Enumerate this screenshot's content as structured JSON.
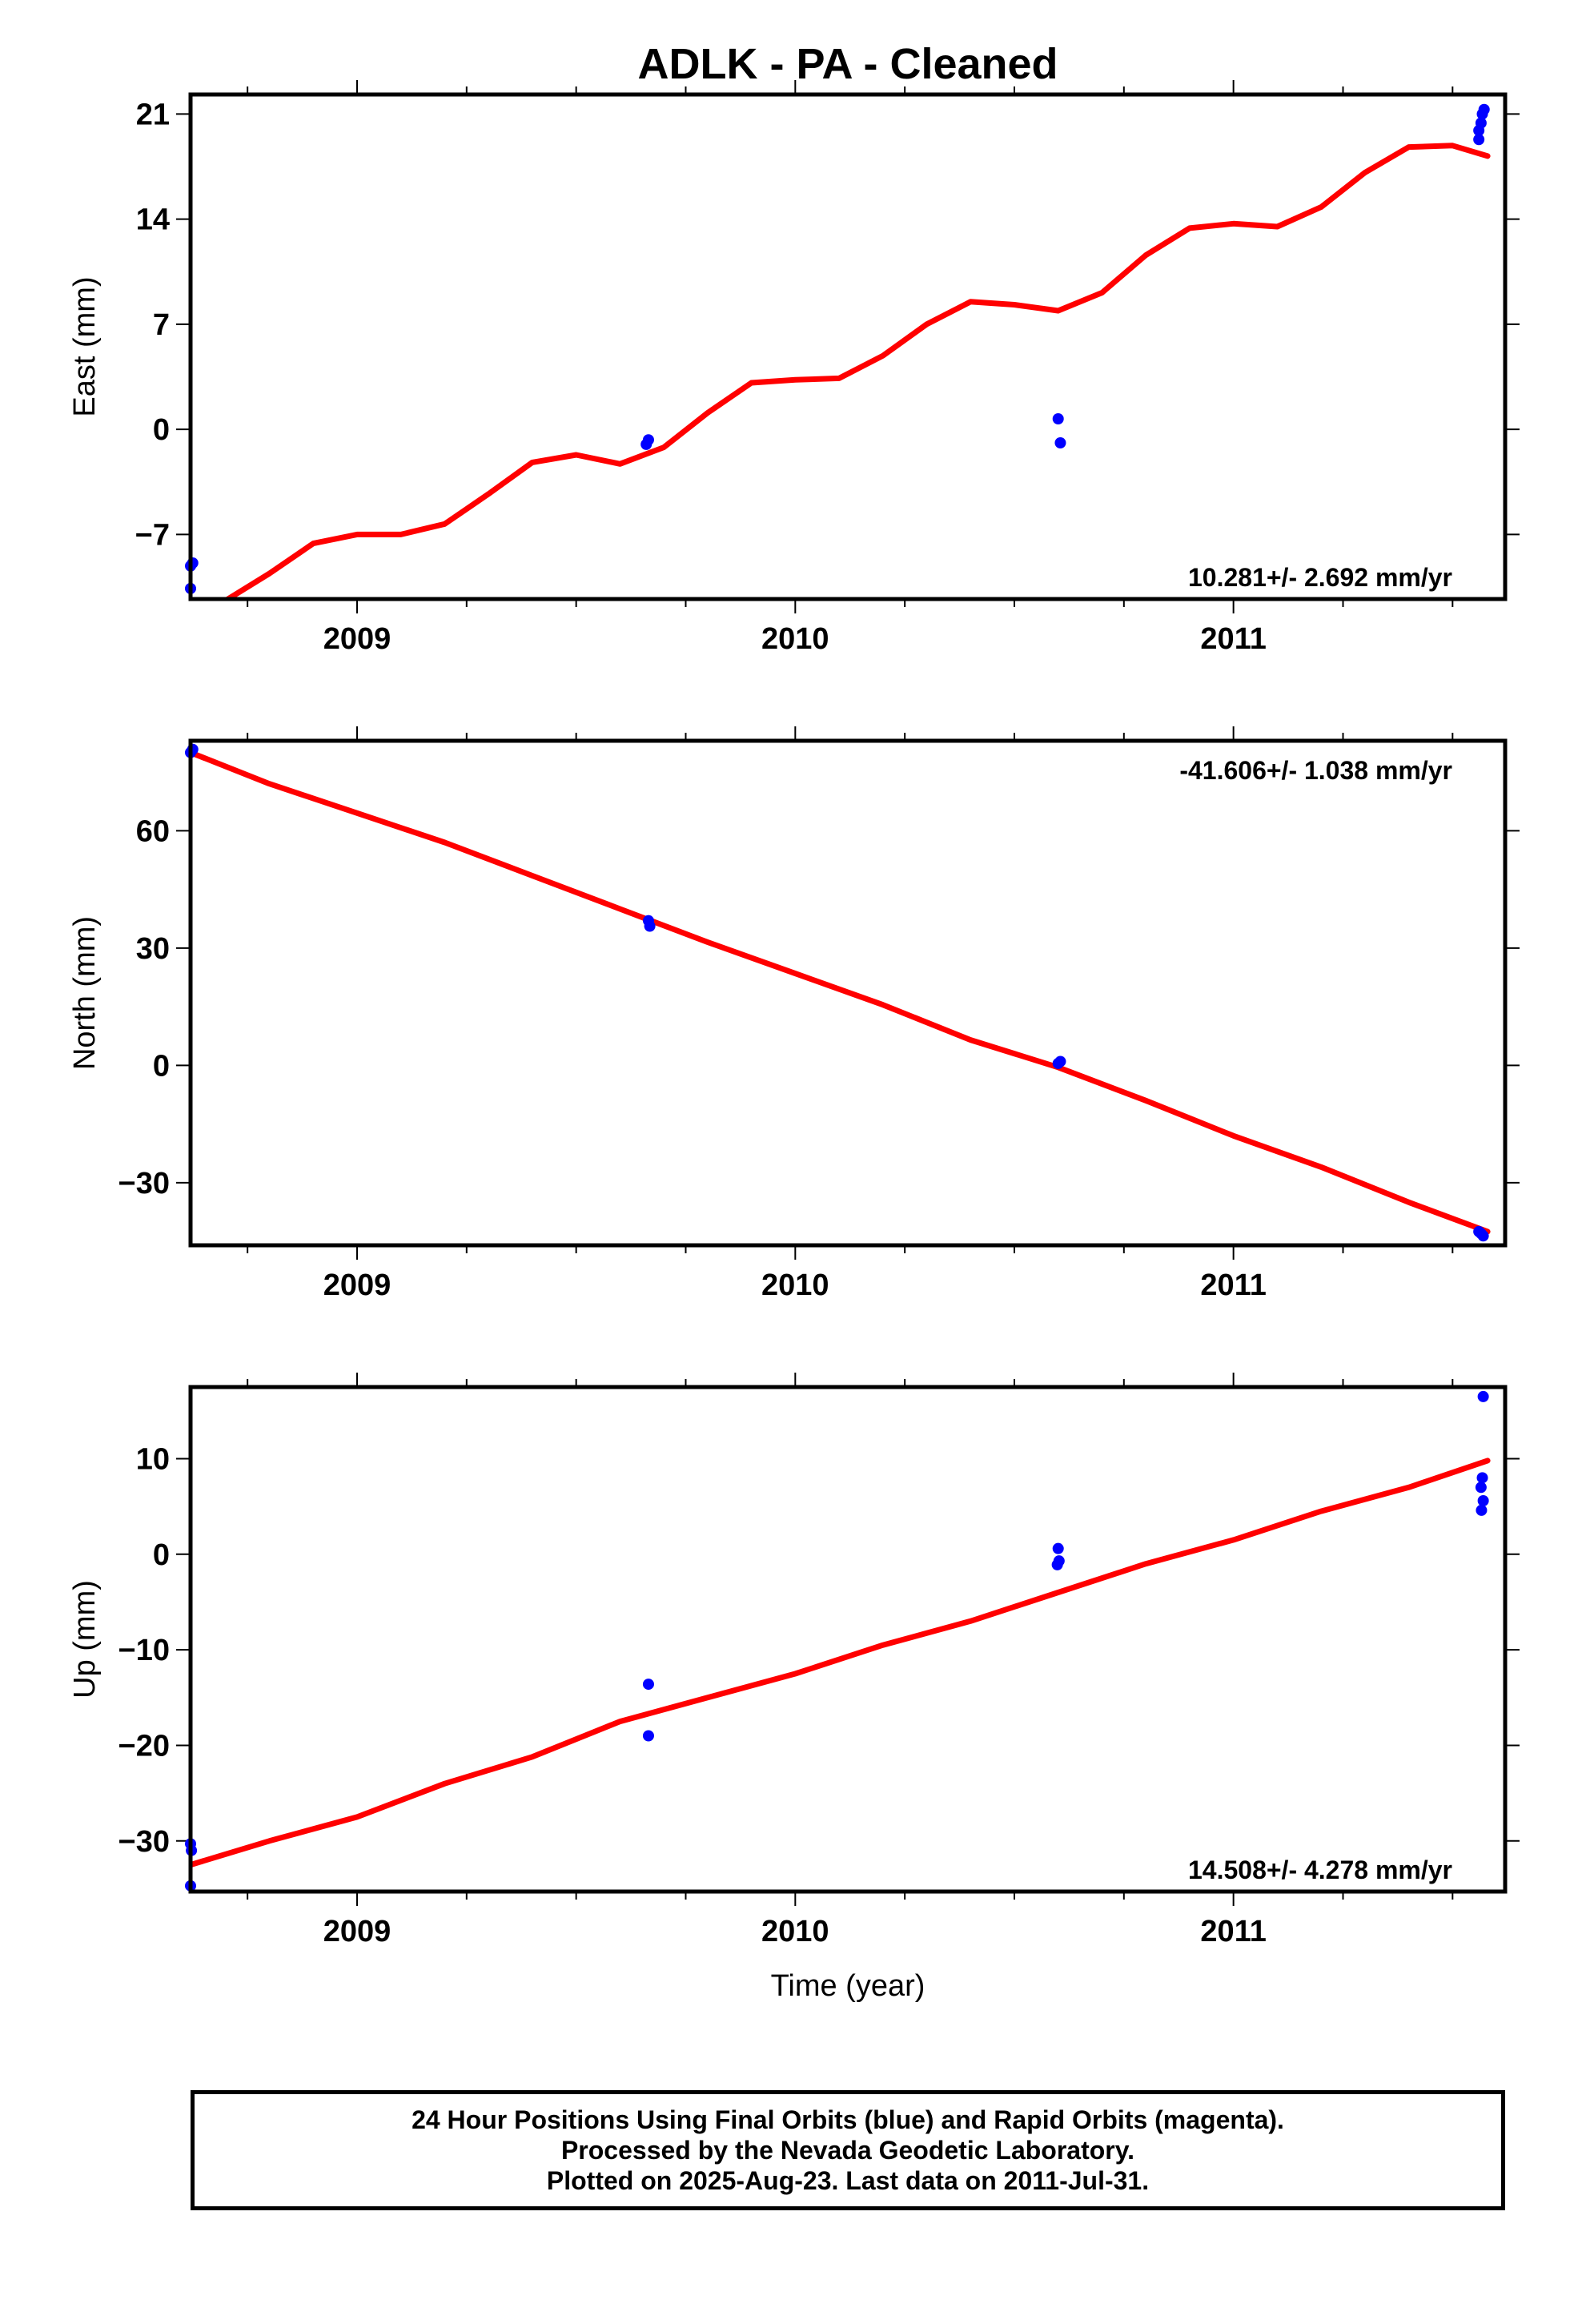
{
  "title": "ADLK  - PA - Cleaned",
  "footer": {
    "line1": "24 Hour Positions Using Final Orbits (blue) and Rapid Orbits (magenta).",
    "line2": "Processed by the Nevada Geodetic Laboratory.",
    "line3": "Plotted on 2025-Aug-23. Last data on 2011-Jul-31."
  },
  "colors": {
    "points": "#0000ff",
    "fit": "#ff0000",
    "frame": "#000000"
  },
  "chart_data": [
    {
      "type": "scatter",
      "name": "East",
      "ylabel": "East (mm)",
      "xlabel": "",
      "xlim": [
        2008.62,
        2011.62
      ],
      "ylim": [
        -11.3,
        22.3
      ],
      "xticks": [
        2009,
        2010,
        2011
      ],
      "xtick_labels": [
        "2009",
        "2010",
        "2011"
      ],
      "yticks": [
        -7,
        0,
        7,
        14,
        21
      ],
      "ytick_labels": [
        "−7",
        "0",
        "7",
        "14",
        "21"
      ],
      "rate_text": "10.281+/- 2.692 mm/yr",
      "rate_position": "bottom-right",
      "points": [
        [
          2008.62,
          -9.1
        ],
        [
          2008.625,
          -8.9
        ],
        [
          2008.62,
          -10.6
        ],
        [
          2009.66,
          -1.0
        ],
        [
          2009.665,
          -0.7
        ],
        [
          2010.6,
          0.7
        ],
        [
          2010.605,
          -0.9
        ],
        [
          2011.56,
          19.9
        ],
        [
          2011.565,
          20.4
        ],
        [
          2011.56,
          19.3
        ],
        [
          2011.568,
          21.0
        ],
        [
          2011.572,
          21.3
        ]
      ],
      "fit": [
        [
          2008.62,
          -11.8
        ],
        [
          2008.7,
          -11.4
        ],
        [
          2008.8,
          -9.6
        ],
        [
          2008.9,
          -7.6
        ],
        [
          2009.0,
          -7.0
        ],
        [
          2009.1,
          -7.0
        ],
        [
          2009.2,
          -6.3
        ],
        [
          2009.3,
          -4.3
        ],
        [
          2009.4,
          -2.2
        ],
        [
          2009.5,
          -1.7
        ],
        [
          2009.6,
          -2.3
        ],
        [
          2009.7,
          -1.2
        ],
        [
          2009.8,
          1.1
        ],
        [
          2009.9,
          3.1
        ],
        [
          2010.0,
          3.3
        ],
        [
          2010.1,
          3.4
        ],
        [
          2010.2,
          4.9
        ],
        [
          2010.3,
          7.0
        ],
        [
          2010.4,
          8.5
        ],
        [
          2010.5,
          8.3
        ],
        [
          2010.6,
          7.9
        ],
        [
          2010.7,
          9.1
        ],
        [
          2010.8,
          11.6
        ],
        [
          2010.9,
          13.4
        ],
        [
          2011.0,
          13.7
        ],
        [
          2011.1,
          13.5
        ],
        [
          2011.2,
          14.8
        ],
        [
          2011.3,
          17.1
        ],
        [
          2011.4,
          18.8
        ],
        [
          2011.5,
          18.9
        ],
        [
          2011.58,
          18.2
        ]
      ]
    },
    {
      "type": "scatter",
      "name": "North",
      "ylabel": "North (mm)",
      "xlabel": "",
      "xlim": [
        2008.62,
        2011.62
      ],
      "ylim": [
        -46,
        83
      ],
      "xticks": [
        2009,
        2010,
        2011
      ],
      "xtick_labels": [
        "2009",
        "2010",
        "2011"
      ],
      "yticks": [
        -30,
        0,
        30,
        60
      ],
      "ytick_labels": [
        "−30",
        "0",
        "30",
        "60"
      ],
      "rate_text": "-41.606+/- 1.038 mm/yr",
      "rate_position": "top-right",
      "points": [
        [
          2008.62,
          80.0
        ],
        [
          2008.625,
          80.8
        ],
        [
          2009.665,
          37.0
        ],
        [
          2009.668,
          35.6
        ],
        [
          2010.6,
          0.5
        ],
        [
          2010.605,
          1.0
        ],
        [
          2011.56,
          -42.5
        ],
        [
          2011.565,
          -43.0
        ],
        [
          2011.57,
          -43.6
        ]
      ],
      "fit": [
        [
          2008.62,
          80.0
        ],
        [
          2008.8,
          72.0
        ],
        [
          2009.0,
          64.5
        ],
        [
          2009.2,
          57.0
        ],
        [
          2009.4,
          48.5
        ],
        [
          2009.6,
          40.0
        ],
        [
          2009.8,
          31.5
        ],
        [
          2010.0,
          23.5
        ],
        [
          2010.2,
          15.5
        ],
        [
          2010.4,
          6.5
        ],
        [
          2010.6,
          -0.5
        ],
        [
          2010.8,
          -9.0
        ],
        [
          2011.0,
          -18.0
        ],
        [
          2011.2,
          -26.0
        ],
        [
          2011.4,
          -35.0
        ],
        [
          2011.58,
          -42.5
        ]
      ]
    },
    {
      "type": "scatter",
      "name": "Up",
      "ylabel": "Up (mm)",
      "xlabel": "Time (year)",
      "xlim": [
        2008.62,
        2011.62
      ],
      "ylim": [
        -35.3,
        17.5
      ],
      "xticks": [
        2009,
        2010,
        2011
      ],
      "xtick_labels": [
        "2009",
        "2010",
        "2011"
      ],
      "yticks": [
        -30,
        -20,
        -10,
        0,
        10
      ],
      "ytick_labels": [
        "−30",
        "−20",
        "−10",
        "0",
        "10"
      ],
      "rate_text": "14.508+/- 4.278 mm/yr",
      "rate_position": "bottom-right",
      "points": [
        [
          2008.62,
          -30.3
        ],
        [
          2008.622,
          -31.0
        ],
        [
          2008.62,
          -34.7
        ],
        [
          2009.665,
          -13.6
        ],
        [
          2009.665,
          -19.0
        ],
        [
          2010.6,
          0.6
        ],
        [
          2010.602,
          -0.7
        ],
        [
          2010.598,
          -1.1
        ],
        [
          2011.57,
          16.5
        ],
        [
          2011.568,
          8.0
        ],
        [
          2011.565,
          7.0
        ],
        [
          2011.57,
          5.6
        ],
        [
          2011.566,
          4.6
        ]
      ],
      "fit": [
        [
          2008.62,
          -32.5
        ],
        [
          2008.8,
          -30.0
        ],
        [
          2009.0,
          -27.5
        ],
        [
          2009.2,
          -24.0
        ],
        [
          2009.4,
          -21.2
        ],
        [
          2009.6,
          -17.5
        ],
        [
          2009.8,
          -15.0
        ],
        [
          2010.0,
          -12.5
        ],
        [
          2010.2,
          -9.5
        ],
        [
          2010.4,
          -7.0
        ],
        [
          2010.6,
          -4.0
        ],
        [
          2010.8,
          -1.0
        ],
        [
          2011.0,
          1.5
        ],
        [
          2011.2,
          4.5
        ],
        [
          2011.4,
          7.0
        ],
        [
          2011.58,
          9.8
        ]
      ]
    }
  ]
}
